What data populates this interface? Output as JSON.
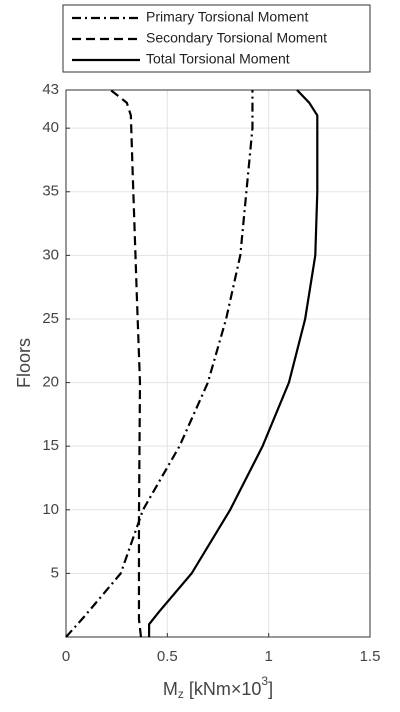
{
  "chart_data": {
    "type": "line",
    "legend": "top",
    "grid": true,
    "ylabel": "Floors",
    "xlabel": [
      "M",
      "z",
      " [kNm×10",
      "3",
      "]"
    ],
    "xlim": [
      0,
      1.5
    ],
    "xticks": [
      0,
      0.5,
      1,
      1.5
    ],
    "ylim": [
      0,
      43
    ],
    "yticks": [
      5,
      10,
      15,
      20,
      25,
      30,
      35,
      40,
      43
    ],
    "series": [
      {
        "name": "Primary Torsional Moment",
        "color": "#000000",
        "dash": "dashdot",
        "x": [
          0,
          0.09,
          0.27,
          0.38,
          0.56,
          0.7,
          0.79,
          0.86,
          0.89,
          0.92,
          0.92
        ],
        "y": [
          0,
          1.6,
          5,
          10,
          15,
          20,
          25,
          30,
          35,
          40,
          43
        ]
      },
      {
        "name": "Secondary Torsional Moment",
        "color": "#000000",
        "dash": "dashed",
        "x": [
          0.37,
          0.36,
          0.36,
          0.365,
          0.35,
          0.33,
          0.32,
          0.3,
          0.22
        ],
        "y": [
          0,
          1.4,
          9.3,
          20,
          26.6,
          36,
          41,
          42,
          43
        ]
      },
      {
        "name": "Total Torsional Moment",
        "color": "#000000",
        "dash": "solid",
        "x": [
          0.41,
          0.41,
          0.46,
          0.62,
          0.81,
          0.97,
          1.1,
          1.18,
          1.23,
          1.24,
          1.24,
          1.2,
          1.14
        ],
        "y": [
          0,
          1,
          2,
          5,
          10,
          15,
          20,
          25,
          30,
          35,
          41,
          42,
          43
        ]
      }
    ]
  }
}
